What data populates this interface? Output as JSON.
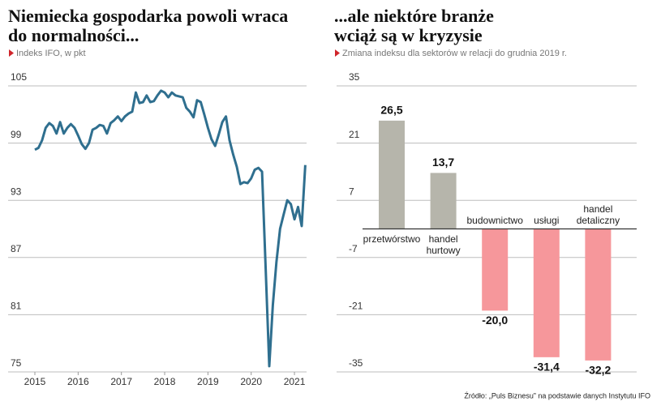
{
  "source": "Źródło: „Puls Biznesu” na podstawie danych Instytutu IFO",
  "chart_data": [
    {
      "type": "line",
      "title": [
        "Niemiecka gospodarka powoli wraca",
        "do normalności..."
      ],
      "subtitle": "Indeks IFO, w pkt",
      "color": "#2f6f8f",
      "x": [
        2015,
        2015.083,
        2015.167,
        2015.25,
        2015.333,
        2015.417,
        2015.5,
        2015.583,
        2015.667,
        2015.75,
        2015.833,
        2015.917,
        2016,
        2016.083,
        2016.167,
        2016.25,
        2016.333,
        2016.417,
        2016.5,
        2016.583,
        2016.667,
        2016.75,
        2016.833,
        2016.917,
        2017,
        2017.083,
        2017.167,
        2017.25,
        2017.333,
        2017.417,
        2017.5,
        2017.583,
        2017.667,
        2017.75,
        2017.833,
        2017.917,
        2018,
        2018.083,
        2018.167,
        2018.25,
        2018.333,
        2018.417,
        2018.5,
        2018.583,
        2018.667,
        2018.75,
        2018.833,
        2018.917,
        2019,
        2019.083,
        2019.167,
        2019.25,
        2019.333,
        2019.417,
        2019.5,
        2019.583,
        2019.667,
        2019.75,
        2019.833,
        2019.917,
        2020,
        2020.083,
        2020.167,
        2020.25,
        2020.333,
        2020.417,
        2020.5,
        2020.583,
        2020.667,
        2020.75,
        2020.833,
        2020.917,
        2021,
        2021.083,
        2021.167,
        2021.25
      ],
      "values": [
        98.3,
        98.5,
        99.3,
        100.6,
        101.1,
        100.8,
        100.0,
        101.2,
        100.0,
        100.6,
        101.0,
        100.6,
        99.8,
        98.9,
        98.4,
        99.0,
        100.4,
        100.6,
        100.9,
        100.8,
        100.0,
        101.1,
        101.4,
        101.8,
        101.3,
        101.8,
        102.1,
        102.3,
        104.3,
        103.2,
        103.3,
        104.0,
        103.3,
        103.4,
        104.0,
        104.5,
        104.3,
        103.8,
        104.3,
        104.0,
        103.9,
        103.8,
        102.7,
        102.3,
        101.7,
        103.5,
        103.3,
        102.0,
        100.6,
        99.4,
        98.7,
        99.9,
        101.2,
        101.8,
        99.3,
        97.8,
        96.5,
        94.7,
        94.9,
        94.8,
        95.3,
        96.2,
        96.4,
        96.0,
        86.0,
        75.6,
        82.0,
        86.5,
        90.0,
        91.5,
        93.0,
        92.6,
        91.0,
        92.3,
        90.3,
        96.7
      ],
      "xlim": [
        2015,
        2021.28
      ],
      "xticks": [
        2015,
        2016,
        2017,
        2018,
        2019,
        2020,
        2021
      ],
      "ylim": [
        75,
        105
      ],
      "yticks": [
        105,
        99,
        93,
        87,
        81,
        75
      ],
      "grid": true
    },
    {
      "type": "bar",
      "title": [
        "...ale niektóre branże",
        "wciąż są w kryzysie"
      ],
      "subtitle": "Zmiana indeksu dla sektorów w relacji do grudnia 2019 r.",
      "categories": [
        "przetwórstwo",
        "handel hurtowy",
        "budownictwo",
        "usługi",
        "handel detaliczny"
      ],
      "values": [
        26.5,
        13.7,
        -20.0,
        -31.4,
        -32.2
      ],
      "value_labels": [
        "26,5",
        "13,7",
        "-20,0",
        "-31,4",
        "-32,2"
      ],
      "colors": [
        "#b6b5ab",
        "#b6b5ab",
        "#f6979b",
        "#f6979b",
        "#f6979b"
      ],
      "ylim": [
        -35,
        35
      ],
      "yticks": [
        35,
        21,
        7,
        -7,
        -21,
        -35
      ],
      "grid": true
    }
  ]
}
